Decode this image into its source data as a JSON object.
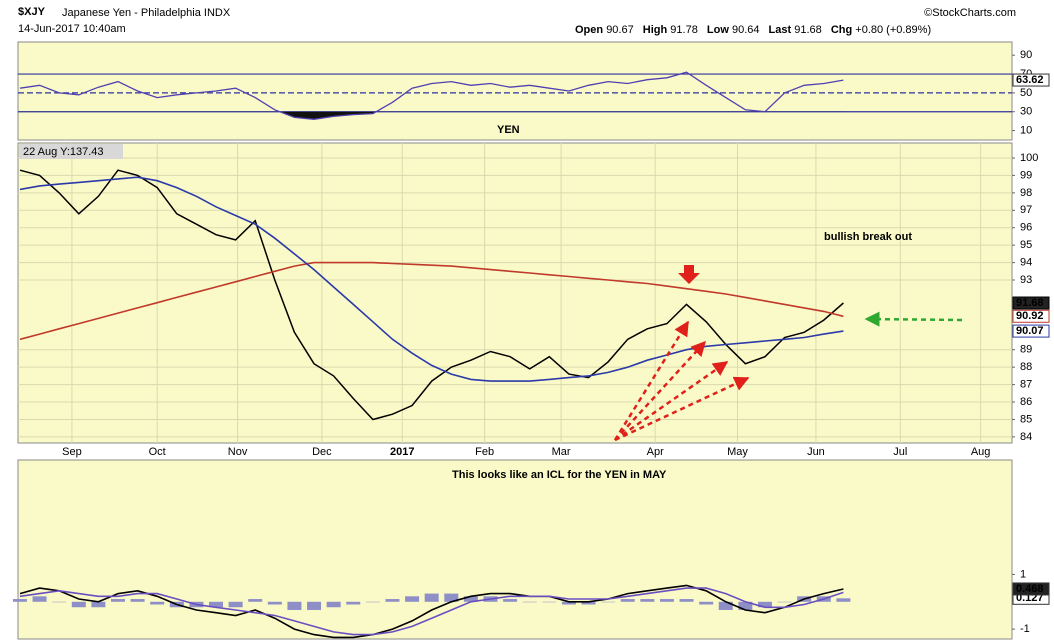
{
  "header": {
    "title": "$XJY",
    "subtitle": "Japanese Yen - Philadelphia INDX",
    "date": "14-Jun-2017 10:40am",
    "source": "©StockCharts.com",
    "quote": [
      [
        "Open",
        "90.67"
      ],
      [
        "High",
        "91.78"
      ],
      [
        "Low",
        "90.64"
      ],
      [
        "Last",
        "91.68"
      ],
      [
        "Chg",
        "+0.80 (+0.89%)"
      ]
    ]
  },
  "annotations": {
    "yen": "YEN",
    "breakout": "bullish break out",
    "icl": "This looks like an ICL for the YEN in MAY"
  },
  "chart_data": [
    {
      "type": "line",
      "color": "#5040b0",
      "ylim": [
        0,
        104
      ],
      "yticks": [
        10,
        30,
        50,
        70,
        90
      ],
      "levels": [
        30,
        50,
        70
      ],
      "values": [
        55,
        58,
        50,
        48,
        56,
        62,
        52,
        45,
        48,
        50,
        52,
        55,
        45,
        32,
        24,
        22,
        25,
        27,
        28,
        40,
        55,
        60,
        62,
        58,
        60,
        56,
        58,
        55,
        52,
        58,
        62,
        60,
        64,
        66,
        72,
        58,
        45,
        32,
        30,
        50,
        58,
        60,
        63.62
      ]
    },
    {
      "type": "line",
      "cursor_label": "22 Aug Y:137.43",
      "xlim": [
        -0.1,
        50.6
      ],
      "ylim": [
        83.65,
        100.86
      ],
      "grid": true,
      "yticks": [
        84,
        85,
        86,
        87,
        88,
        89,
        93,
        94,
        95,
        96,
        97,
        98,
        99,
        100
      ],
      "xticks": [
        {
          "value": 2.65,
          "label": "Sep"
        },
        {
          "value": 7,
          "label": "Oct"
        },
        {
          "value": 11.1,
          "label": "Nov"
        },
        {
          "value": 15.4,
          "label": "Dec"
        },
        {
          "value": 19.5,
          "label": "2017"
        },
        {
          "value": 23.7,
          "label": "Feb"
        },
        {
          "value": 27.6,
          "label": "Mar"
        },
        {
          "value": 32.4,
          "label": "Apr"
        },
        {
          "value": 36.6,
          "label": "May"
        },
        {
          "value": 40.6,
          "label": "Jun"
        },
        {
          "value": 44.9,
          "label": "Jul"
        },
        {
          "value": 49,
          "label": "Aug"
        }
      ],
      "series": [
        {
          "color": "#000000",
          "values": [
            99.3,
            99.0,
            98.0,
            96.8,
            97.8,
            99.3,
            99.0,
            98.3,
            96.8,
            96.2,
            95.6,
            95.3,
            96.4,
            93.0,
            90.0,
            88.2,
            87.5,
            86.2,
            85.0,
            85.3,
            85.8,
            87.2,
            88.0,
            88.4,
            88.9,
            88.6,
            87.9,
            88.6,
            87.6,
            87.4,
            88.3,
            89.6,
            90.2,
            90.5,
            91.6,
            90.6,
            89.3,
            88.2,
            88.6,
            89.7,
            90.0,
            90.7,
            91.68
          ]
        },
        {
          "color": "#c0392b",
          "values": [
            89.6,
            89.9,
            90.2,
            90.5,
            90.8,
            91.1,
            91.4,
            91.7,
            92.0,
            92.3,
            92.6,
            92.9,
            93.2,
            93.5,
            93.8,
            94.0,
            94.0,
            94.0,
            94.0,
            93.95,
            93.9,
            93.85,
            93.8,
            93.7,
            93.6,
            93.5,
            93.4,
            93.3,
            93.2,
            93.1,
            93.0,
            92.9,
            92.8,
            92.65,
            92.5,
            92.35,
            92.2,
            92.0,
            91.8,
            91.6,
            91.4,
            91.2,
            90.92
          ]
        },
        {
          "color": "#2b3aa8",
          "values": [
            98.2,
            98.4,
            98.5,
            98.6,
            98.7,
            98.8,
            98.9,
            98.7,
            98.3,
            97.8,
            97.2,
            96.7,
            96.2,
            95.4,
            94.5,
            93.6,
            92.6,
            91.6,
            90.6,
            89.6,
            88.8,
            88.1,
            87.6,
            87.3,
            87.2,
            87.2,
            87.2,
            87.3,
            87.4,
            87.5,
            87.7,
            88.0,
            88.4,
            88.7,
            89.0,
            89.2,
            89.3,
            89.4,
            89.5,
            89.6,
            89.7,
            89.9,
            90.07
          ]
        }
      ]
    },
    {
      "type": "line",
      "ylim": [
        -1.36,
        5.18
      ],
      "yticks": [
        -1,
        1
      ],
      "series": [
        {
          "type": "bar",
          "color": "#8f8fc8",
          "values": [
            0.1,
            0.2,
            0.0,
            -0.2,
            -0.2,
            0.1,
            0.1,
            -0.1,
            -0.2,
            -0.2,
            -0.2,
            -0.2,
            0.1,
            -0.1,
            -0.3,
            -0.3,
            -0.2,
            -0.1,
            0.0,
            0.1,
            0.2,
            0.3,
            0.3,
            0.2,
            0.2,
            0.1,
            0.0,
            0.0,
            -0.1,
            -0.1,
            0.0,
            0.1,
            0.1,
            0.1,
            0.1,
            -0.1,
            -0.3,
            -0.3,
            -0.2,
            0.0,
            0.2,
            0.2,
            0.127
          ]
        },
        {
          "color": "#000000",
          "values": [
            0.3,
            0.5,
            0.4,
            0.1,
            0.0,
            0.3,
            0.4,
            0.2,
            -0.1,
            -0.3,
            -0.4,
            -0.5,
            -0.3,
            -0.6,
            -1.0,
            -1.2,
            -1.3,
            -1.3,
            -1.2,
            -1.0,
            -0.7,
            -0.3,
            0.0,
            0.2,
            0.3,
            0.3,
            0.2,
            0.2,
            0.0,
            0.0,
            0.1,
            0.3,
            0.4,
            0.5,
            0.6,
            0.4,
            0.0,
            -0.3,
            -0.4,
            -0.2,
            0.1,
            0.3,
            0.468
          ]
        },
        {
          "color": "#6a4fc0",
          "values": [
            0.2,
            0.3,
            0.4,
            0.3,
            0.2,
            0.2,
            0.3,
            0.3,
            0.1,
            -0.1,
            -0.2,
            -0.3,
            -0.4,
            -0.5,
            -0.7,
            -0.9,
            -1.1,
            -1.2,
            -1.2,
            -1.1,
            -0.9,
            -0.6,
            -0.3,
            0.0,
            0.1,
            0.2,
            0.2,
            0.2,
            0.1,
            0.1,
            0.1,
            0.2,
            0.3,
            0.4,
            0.5,
            0.5,
            0.3,
            0.0,
            -0.2,
            -0.2,
            -0.1,
            0.1,
            0.341
          ]
        }
      ]
    }
  ]
}
